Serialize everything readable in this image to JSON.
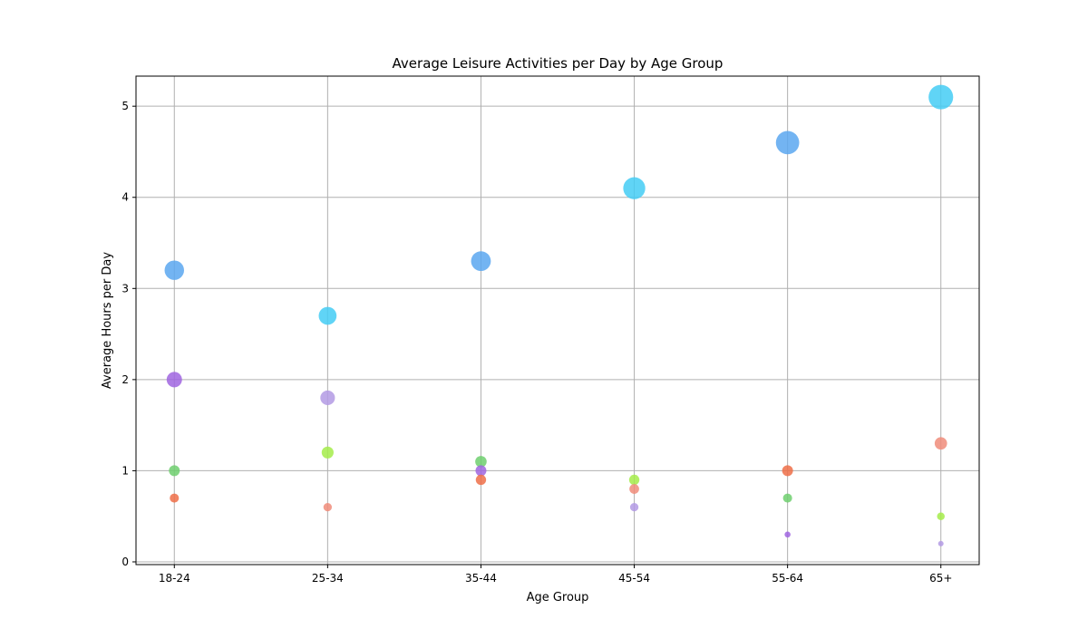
{
  "chart_data": {
    "type": "scatter",
    "title": "Average Leisure Activities per Day by Age Group",
    "xlabel": "Age Group",
    "ylabel": "Average Hours per Day",
    "categories": [
      "18-24",
      "25-34",
      "35-44",
      "45-54",
      "55-64",
      "65+"
    ],
    "ylim": [
      -0.03,
      5.33
    ],
    "yticks": [
      0,
      1,
      2,
      3,
      4,
      5
    ],
    "grid": true,
    "legend": "none",
    "points": [
      {
        "x": "18-24",
        "y": 3.2,
        "color": "#5aa7f0"
      },
      {
        "x": "18-24",
        "y": 2.0,
        "color": "#a065e0"
      },
      {
        "x": "18-24",
        "y": 1.0,
        "color": "#6fcf6f"
      },
      {
        "x": "18-24",
        "y": 0.7,
        "color": "#ef6f48"
      },
      {
        "x": "25-34",
        "y": 2.7,
        "color": "#44ccf5"
      },
      {
        "x": "25-34",
        "y": 1.8,
        "color": "#b39ae4"
      },
      {
        "x": "25-34",
        "y": 1.2,
        "color": "#a5ec4a"
      },
      {
        "x": "25-34",
        "y": 0.6,
        "color": "#f08c7a"
      },
      {
        "x": "35-44",
        "y": 3.3,
        "color": "#5aa7f0"
      },
      {
        "x": "35-44",
        "y": 1.1,
        "color": "#6fcf6f"
      },
      {
        "x": "35-44",
        "y": 1.0,
        "color": "#a065e0"
      },
      {
        "x": "35-44",
        "y": 0.9,
        "color": "#ef6f48"
      },
      {
        "x": "45-54",
        "y": 4.1,
        "color": "#44ccf5"
      },
      {
        "x": "45-54",
        "y": 0.9,
        "color": "#a5ec4a"
      },
      {
        "x": "45-54",
        "y": 0.8,
        "color": "#f08c7a"
      },
      {
        "x": "45-54",
        "y": 0.6,
        "color": "#b39ae4"
      },
      {
        "x": "55-64",
        "y": 4.6,
        "color": "#5aa7f0"
      },
      {
        "x": "55-64",
        "y": 1.0,
        "color": "#ef6f48"
      },
      {
        "x": "55-64",
        "y": 0.7,
        "color": "#6fcf6f"
      },
      {
        "x": "55-64",
        "y": 0.3,
        "color": "#a065e0"
      },
      {
        "x": "65+",
        "y": 5.1,
        "color": "#44ccf5"
      },
      {
        "x": "65+",
        "y": 1.3,
        "color": "#f08c7a"
      },
      {
        "x": "65+",
        "y": 0.5,
        "color": "#a5ec4a"
      },
      {
        "x": "65+",
        "y": 0.2,
        "color": "#b39ae4"
      }
    ]
  }
}
